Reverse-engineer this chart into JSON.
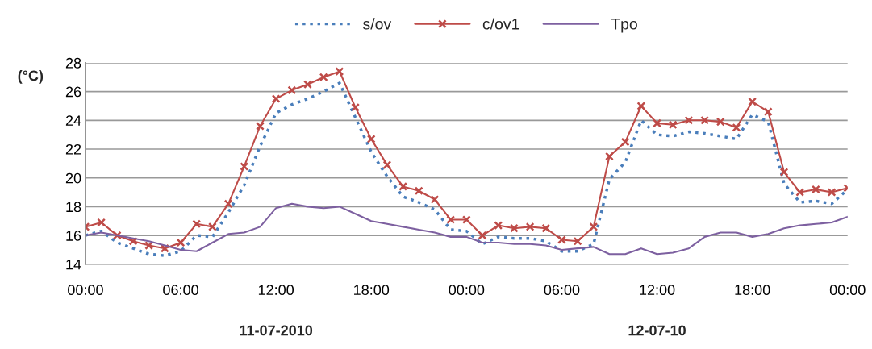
{
  "chart_data": {
    "type": "line",
    "ylabel": "(°C)",
    "grid": "y",
    "legend": "top",
    "x": [
      "2010-07-11T00:00",
      "2010-07-11T01:00",
      "2010-07-11T02:00",
      "2010-07-11T03:00",
      "2010-07-11T04:00",
      "2010-07-11T05:00",
      "2010-07-11T06:00",
      "2010-07-11T07:00",
      "2010-07-11T08:00",
      "2010-07-11T09:00",
      "2010-07-11T10:00",
      "2010-07-11T11:00",
      "2010-07-11T12:00",
      "2010-07-11T13:00",
      "2010-07-11T14:00",
      "2010-07-11T15:00",
      "2010-07-11T16:00",
      "2010-07-11T17:00",
      "2010-07-11T18:00",
      "2010-07-11T19:00",
      "2010-07-11T20:00",
      "2010-07-11T21:00",
      "2010-07-11T22:00",
      "2010-07-11T23:00",
      "2010-07-12T00:00",
      "2010-07-12T01:00",
      "2010-07-12T02:00",
      "2010-07-12T03:00",
      "2010-07-12T04:00",
      "2010-07-12T05:00",
      "2010-07-12T06:00",
      "2010-07-12T07:00",
      "2010-07-12T08:00",
      "2010-07-12T09:00",
      "2010-07-12T10:00",
      "2010-07-12T11:00",
      "2010-07-12T12:00",
      "2010-07-12T13:00",
      "2010-07-12T14:00",
      "2010-07-12T15:00",
      "2010-07-12T16:00",
      "2010-07-12T17:00",
      "2010-07-12T18:00",
      "2010-07-12T19:00",
      "2010-07-12T20:00",
      "2010-07-12T21:00",
      "2010-07-12T22:00",
      "2010-07-12T23:00",
      "2010-07-13T00:00"
    ],
    "xlim": [
      "2010-07-11T00:00",
      "2010-07-13T00:00"
    ],
    "xticks": [
      {
        "value": "2010-07-11T00:00",
        "label": "00:00"
      },
      {
        "value": "2010-07-11T06:00",
        "label": "06:00"
      },
      {
        "value": "2010-07-11T12:00",
        "label": "12:00"
      },
      {
        "value": "2010-07-11T18:00",
        "label": "18:00"
      },
      {
        "value": "2010-07-12T00:00",
        "label": "00:00"
      },
      {
        "value": "2010-07-12T06:00",
        "label": "06:00"
      },
      {
        "value": "2010-07-12T12:00",
        "label": "12:00"
      },
      {
        "value": "2010-07-12T18:00",
        "label": "18:00"
      },
      {
        "value": "2010-07-13T00:00",
        "label": "00:00"
      }
    ],
    "ylim": [
      14,
      28
    ],
    "yticks": [
      14,
      16,
      18,
      20,
      22,
      24,
      26,
      28
    ],
    "series": [
      {
        "name": "s/ov",
        "color": "#4a7ebb",
        "line_style": "dotted",
        "marker": "none",
        "values": [
          16.0,
          16.3,
          15.5,
          15.1,
          14.7,
          14.6,
          14.9,
          16.0,
          15.9,
          17.6,
          19.5,
          22.2,
          24.5,
          25.1,
          25.5,
          26.0,
          26.6,
          24.2,
          21.8,
          20.1,
          18.7,
          18.3,
          17.8,
          16.4,
          16.3,
          15.4,
          15.9,
          15.8,
          15.8,
          15.6,
          14.9,
          14.9,
          15.4,
          19.9,
          21.1,
          24.0,
          23.0,
          22.9,
          23.2,
          23.1,
          22.9,
          22.7,
          24.4,
          23.9,
          19.6,
          18.3,
          18.4,
          18.2,
          19.2
        ]
      },
      {
        "name": "c/ov1",
        "color": "#be4b48",
        "line_style": "solid",
        "marker": "cross",
        "values": [
          16.6,
          16.9,
          16.0,
          15.6,
          15.3,
          15.1,
          15.5,
          16.8,
          16.6,
          18.2,
          20.8,
          23.6,
          25.5,
          26.1,
          26.5,
          27.0,
          27.4,
          24.9,
          22.7,
          20.9,
          19.4,
          19.1,
          18.5,
          17.1,
          17.1,
          16.0,
          16.7,
          16.5,
          16.6,
          16.5,
          15.7,
          15.6,
          16.6,
          21.5,
          22.5,
          25.0,
          23.8,
          23.7,
          24.0,
          24.0,
          23.9,
          23.5,
          25.3,
          24.6,
          20.4,
          19.0,
          19.2,
          19.0,
          19.3
        ]
      },
      {
        "name": "Tpo",
        "color": "#7d60a0",
        "line_style": "solid",
        "marker": "none",
        "values": [
          16.0,
          16.2,
          16.0,
          15.8,
          15.6,
          15.3,
          15.0,
          14.9,
          15.5,
          16.1,
          16.2,
          16.6,
          17.9,
          18.2,
          18.0,
          17.9,
          18.0,
          17.5,
          17.0,
          16.8,
          16.6,
          16.4,
          16.2,
          15.9,
          15.9,
          15.5,
          15.5,
          15.4,
          15.4,
          15.3,
          15.0,
          15.1,
          15.2,
          14.7,
          14.7,
          15.1,
          14.7,
          14.8,
          15.1,
          15.9,
          16.2,
          16.2,
          15.9,
          16.1,
          16.5,
          16.7,
          16.8,
          16.9,
          17.3
        ]
      }
    ],
    "annotations": [
      "11-07-2010",
      "12-07-10"
    ]
  }
}
